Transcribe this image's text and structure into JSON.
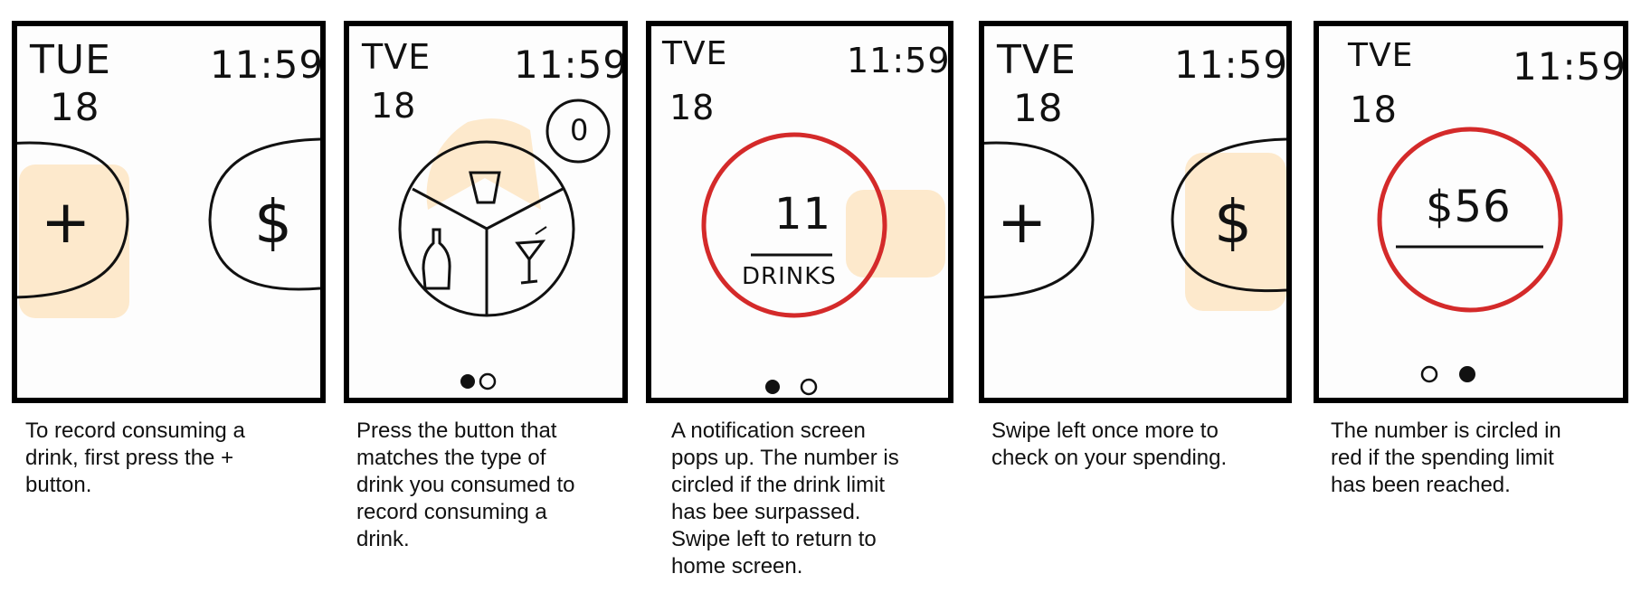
{
  "colors": {
    "highlight": "#fde9cc",
    "alert": "#d42a2a",
    "ink": "#111111"
  },
  "panels": [
    {
      "day": "TUE",
      "date": "18",
      "time": "11:59",
      "left_button": "+",
      "right_button": "$",
      "caption": "To record consuming a\ndrink, first press the +\nbutton."
    },
    {
      "day": "TVE",
      "date": "18",
      "time": "11:59",
      "counter": "0",
      "icons": [
        "cup-icon",
        "bottle-icon",
        "cocktail-icon"
      ],
      "caption": "Press the button that\nmatches the type of\ndrink you consumed to\nrecord consuming a\ndrink."
    },
    {
      "day": "TVE",
      "date": "18",
      "time": "11:59",
      "count": "11",
      "count_label": "DRINKS",
      "caption": "A notification screen\npops up. The number is\ncircled if the drink limit\nhas bee surpassed.\nSwipe left to return to\nhome screen."
    },
    {
      "day": "TVE",
      "date": "18",
      "time": "11:59",
      "left_button": "+",
      "right_button": "$",
      "caption": "Swipe left once more to\ncheck on your spending."
    },
    {
      "day": "TVE",
      "date": "18",
      "time": "11:59",
      "amount": "$56",
      "caption": "The number is circled in\nred if the spending limit\nhas been reached."
    }
  ]
}
